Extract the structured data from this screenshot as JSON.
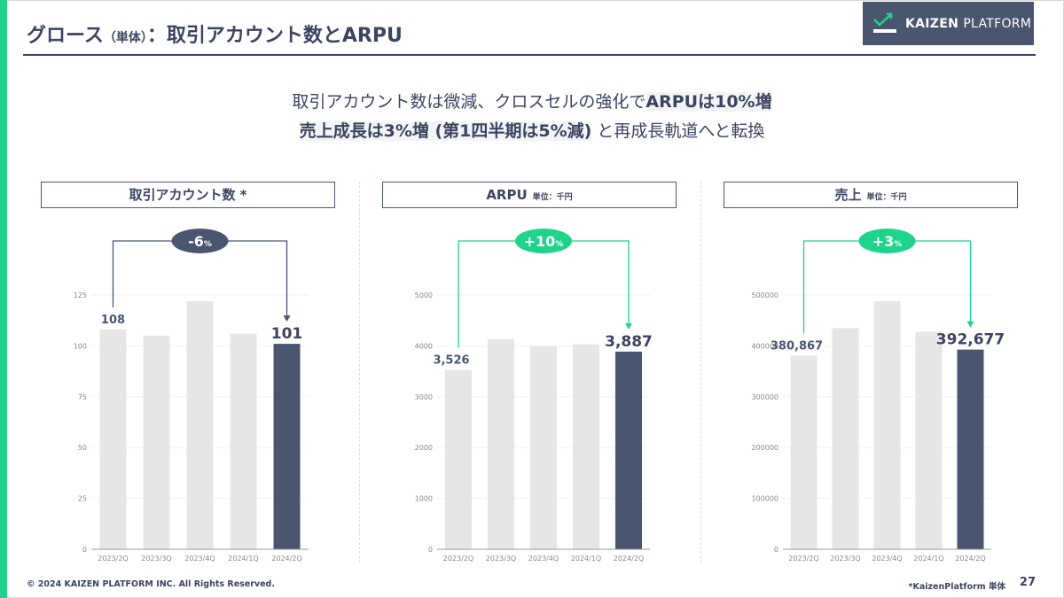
{
  "slide": {
    "title_main": "グロース",
    "title_sub": "（単体）",
    "title_rest": "：取引アカウント数とARPU",
    "logo_text_bold": "KAIZEN",
    "logo_text": "PLATFORM",
    "headline": {
      "line1_plain": "取引アカウント数は微減、クロスセルの強化で",
      "line1_bold": "ARPUは10%増",
      "line2_bold": "売上成長は3%増 (第1四半期は5%減)",
      "line2_plain": " と再成長軌道へと転換"
    },
    "footer_copyright": "© 2024 KAIZEN PLATFORM INC. All Rights Reserved.",
    "footer_note": "*KaizenPlatform 単体",
    "page_number": "27"
  },
  "colors": {
    "accent_green": "#1ed48a",
    "navy": "#4a5570",
    "bar_gray": "#e6e6e6"
  },
  "chart_data": [
    {
      "type": "bar",
      "title": "取引アカウント数 *",
      "unit": "",
      "categories": [
        "2023/2Q",
        "2023/3Q",
        "2023/4Q",
        "2024/1Q",
        "2024/2Q"
      ],
      "values": [
        108,
        105,
        122,
        106,
        101
      ],
      "value_labels": {
        "first": "108",
        "last": "101"
      },
      "change_label": "-6",
      "change_unit": "%",
      "change_color": "#4a5570",
      "ylim": [
        0,
        125
      ],
      "yticks": [
        "0",
        "25",
        "50",
        "75",
        "100",
        "125"
      ],
      "grid": true
    },
    {
      "type": "bar",
      "title": "ARPU",
      "unit": "単位：千円",
      "categories": [
        "2023/2Q",
        "2023/3Q",
        "2023/4Q",
        "2024/1Q",
        "2024/2Q"
      ],
      "values": [
        3526,
        4130,
        3990,
        4030,
        3887
      ],
      "value_labels": {
        "first": "3,526",
        "last": "3,887"
      },
      "change_label": "+10",
      "change_unit": "%",
      "change_color": "#1ed48a",
      "ylim": [
        0,
        5000
      ],
      "yticks": [
        "0",
        "1000",
        "2000",
        "3000",
        "4000",
        "5000"
      ],
      "grid": true
    },
    {
      "type": "bar",
      "title": "売上",
      "unit": "単位：千円",
      "categories": [
        "2023/2Q",
        "2023/3Q",
        "2023/4Q",
        "2024/1Q",
        "2024/2Q"
      ],
      "values": [
        380867,
        435000,
        488000,
        428000,
        392677
      ],
      "value_labels": {
        "first": "380,867",
        "last": "392,677"
      },
      "change_label": "+3",
      "change_unit": "%",
      "change_color": "#1ed48a",
      "ylim": [
        0,
        500000
      ],
      "yticks": [
        "0",
        "100000",
        "200000",
        "300000",
        "400000",
        "500000"
      ],
      "grid": true
    }
  ]
}
